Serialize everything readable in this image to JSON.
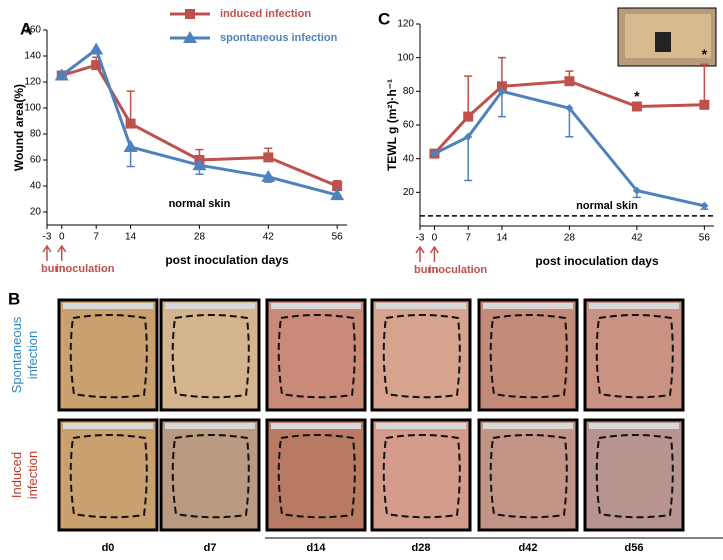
{
  "chart_data": [
    {
      "type": "line",
      "panel": "A",
      "ylabel": "Wound area(%)",
      "xlabel": "post inoculation days",
      "x": [
        0,
        7,
        14,
        28,
        42,
        56
      ],
      "series": [
        {
          "name": "induced infection",
          "color": "#c0504d",
          "marker": "square",
          "values": [
            125,
            133,
            88,
            60,
            62,
            40
          ],
          "errors": [
            0,
            6,
            25,
            8,
            7,
            4
          ],
          "error_bar_side": "up"
        },
        {
          "name": "spontaneous infection",
          "color": "#4f81bd",
          "marker": "triangle",
          "values": [
            125,
            145,
            70,
            56,
            47,
            33
          ],
          "errors": [
            0,
            3,
            15,
            7,
            4,
            2
          ],
          "error_bar_side": "down"
        }
      ],
      "xlim": [
        -3,
        58
      ],
      "xticks": [
        -3,
        0,
        7,
        14,
        28,
        42,
        56
      ],
      "ylim": [
        10,
        160
      ],
      "yticks": [
        20,
        40,
        60,
        80,
        100,
        120,
        140,
        160
      ],
      "annotations": [
        {
          "text": "normal skin",
          "x": 28,
          "y": 26
        }
      ],
      "events": [
        {
          "tick": 0,
          "label": "burn"
        },
        {
          "tick": 1,
          "label": "inoculation"
        }
      ]
    },
    {
      "type": "line",
      "panel": "C",
      "ylabel": "TEWL g (m²)·h⁻¹",
      "xlabel": "post inoculation days",
      "x": [
        0,
        7,
        14,
        28,
        42,
        56
      ],
      "series": [
        {
          "color": "#c0504d",
          "marker": "square",
          "values": [
            43,
            65,
            83,
            86,
            71,
            72
          ],
          "errors": [
            0,
            24,
            17,
            6,
            0,
            24
          ],
          "error_bar_side": "up"
        },
        {
          "color": "#4f81bd",
          "marker": "diamond",
          "values": [
            43,
            53,
            80,
            70,
            21,
            12
          ],
          "errors": [
            0,
            26,
            15,
            17,
            4,
            2
          ],
          "error_bar_side": "down"
        }
      ],
      "xlim": [
        -3,
        58
      ],
      "xticks": [
        -3,
        0,
        7,
        14,
        28,
        42,
        56
      ],
      "ylim": [
        0,
        120
      ],
      "yticks": [
        20,
        40,
        60,
        80,
        100,
        120
      ],
      "reference_line": {
        "value": 6,
        "label": "normal skin"
      },
      "significance_markers": [
        {
          "x": 42,
          "label": "*"
        },
        {
          "x": 56,
          "label": "*"
        }
      ],
      "events": [
        {
          "tick": 0,
          "label": "burn"
        },
        {
          "tick": 1,
          "label": "inoculation"
        }
      ]
    }
  ],
  "photo_panel": {
    "label": "B",
    "rows": [
      "Spontaneous infection",
      "Induced infection"
    ],
    "columns": [
      "d0",
      "d7",
      "d14",
      "d28",
      "d42",
      "d56"
    ]
  }
}
